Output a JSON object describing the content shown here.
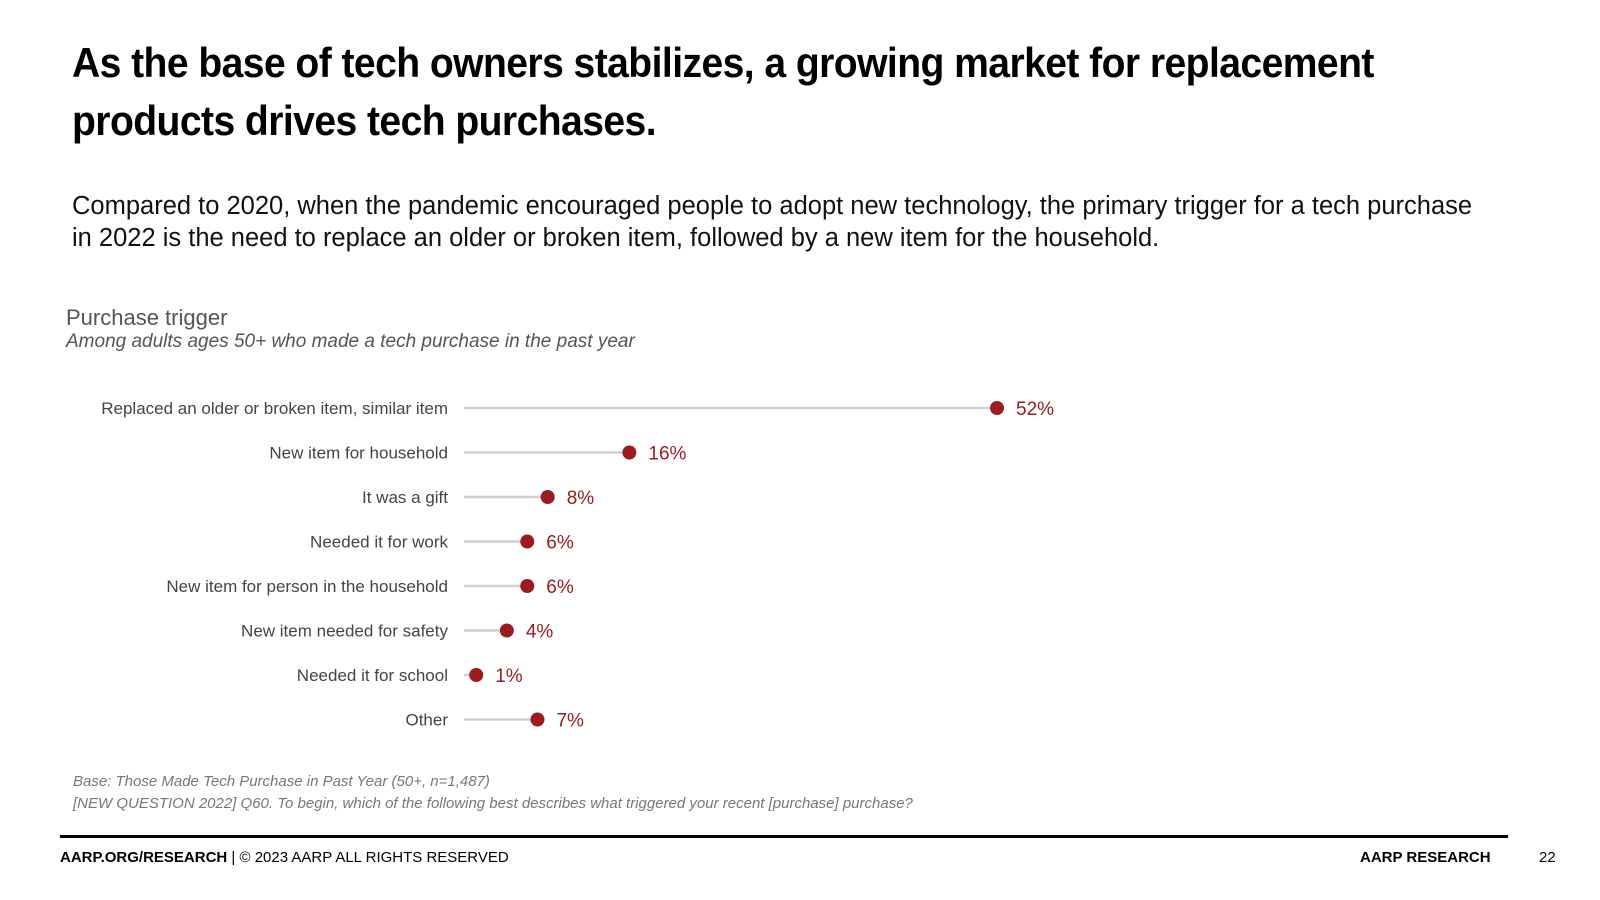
{
  "slide": {
    "headline": "As the base of tech owners stabilizes, a growing market for replacement products drives tech purchases.",
    "subhead": "Compared to 2020, when the pandemic encouraged people to adopt new technology, the primary trigger for a tech purchase in 2022 is the need to replace an older or broken item, followed by a new item for the household."
  },
  "chart_data": {
    "type": "lollipop",
    "title": "Purchase trigger",
    "subtitle": "Among adults ages 50+ who made a tech purchase in the past year",
    "unit": "%",
    "categories": [
      "Replaced an older or broken item, similar item",
      "New item for household",
      "It was a gift",
      "Needed it for work",
      "New item for person in the household",
      "New item needed for safety",
      "Needed it for school",
      "Other"
    ],
    "values": [
      52,
      16,
      8,
      6,
      6,
      4,
      1,
      7
    ],
    "value_labels": [
      "52%",
      "16%",
      "8%",
      "6%",
      "6%",
      "4%",
      "1%",
      "7%"
    ],
    "xlim": [
      0,
      52
    ],
    "colors": {
      "marker": "#9b1c20",
      "stem": "#d0d0d0",
      "label": "#9b1c20"
    }
  },
  "footnotes": {
    "base": "Base: Those Made Tech Purchase in Past Year (50+, n=1,487)",
    "question": "[NEW QUESTION 2022] Q60. To begin, which of the following best describes what triggered your recent [purchase] purchase?"
  },
  "footer": {
    "site": "AARP.ORG/RESEARCH",
    "copyright": " | © 2023 AARP ALL RIGHTS RESERVED",
    "brand": "AARP RESEARCH",
    "page_number": "22"
  }
}
